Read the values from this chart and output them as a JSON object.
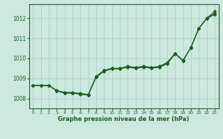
{
  "title": "Graphe pression niveau de la mer (hPa)",
  "bg_color": "#cce8df",
  "grid_color": "#aacfc5",
  "line_color": "#1a5e20",
  "marker_color": "#1a5e20",
  "xlim": [
    -0.5,
    23.5
  ],
  "ylim": [
    1007.5,
    1012.7
  ],
  "yticks": [
    1008,
    1009,
    1010,
    1011,
    1012
  ],
  "xticks": [
    0,
    1,
    2,
    3,
    4,
    5,
    6,
    7,
    8,
    9,
    10,
    11,
    12,
    13,
    14,
    15,
    16,
    17,
    18,
    19,
    20,
    21,
    22,
    23
  ],
  "series1": [
    1008.65,
    1008.65,
    1008.65,
    1008.4,
    1008.3,
    1008.3,
    1008.25,
    1008.2,
    1009.1,
    1009.4,
    1009.5,
    1009.5,
    1009.6,
    1009.55,
    1009.6,
    1009.55,
    1009.6,
    1009.8,
    1010.25,
    1009.9,
    1010.55,
    1011.5,
    1012.0,
    1012.35
  ],
  "series2": [
    1008.65,
    1008.65,
    1008.65,
    1008.4,
    1008.28,
    1008.28,
    1008.22,
    1008.18,
    1009.05,
    1009.35,
    1009.47,
    1009.47,
    1009.55,
    1009.5,
    1009.55,
    1009.5,
    1009.55,
    1009.72,
    1010.22,
    1009.87,
    1010.53,
    1011.48,
    1011.98,
    1012.18
  ],
  "series3": [
    1008.65,
    1008.65,
    1008.65,
    1008.38,
    1008.27,
    1008.27,
    1008.22,
    1008.17,
    1009.08,
    1009.38,
    1009.49,
    1009.49,
    1009.57,
    1009.52,
    1009.57,
    1009.52,
    1009.57,
    1009.75,
    1010.23,
    1009.88,
    1010.53,
    1011.49,
    1011.99,
    1012.22
  ],
  "series4": [
    1008.65,
    1008.65,
    1008.65,
    1008.37,
    1008.26,
    1008.26,
    1008.21,
    1008.16,
    1009.09,
    1009.39,
    1009.5,
    1009.5,
    1009.58,
    1009.53,
    1009.58,
    1009.53,
    1009.58,
    1009.76,
    1010.24,
    1009.89,
    1010.54,
    1011.5,
    1012.0,
    1012.25
  ]
}
